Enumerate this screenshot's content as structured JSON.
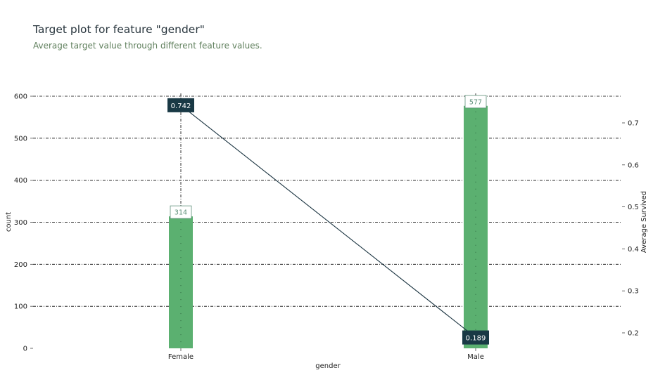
{
  "header": {
    "title": "Target plot for feature \"gender\"",
    "subtitle": "Average target value through different feature values."
  },
  "colors": {
    "bar": "#5bb070",
    "line": "#1a3340",
    "label_box": "#193945",
    "bar_label_text": "#5d8f78",
    "grid": "#000000",
    "title": "#29363e",
    "subtitle": "#5f7f5c"
  },
  "chart_data": {
    "type": "bar",
    "title": "Target plot for feature \"gender\"",
    "subtitle": "Average target value through different feature values.",
    "xlabel": "gender",
    "ylabel": "count",
    "y2label": "Average Survived",
    "categories": [
      "Female",
      "Male"
    ],
    "ylim": [
      0,
      600
    ],
    "y2lim": [
      0.15,
      0.78
    ],
    "yticks": [
      0,
      100,
      200,
      300,
      400,
      500,
      600
    ],
    "y2ticks": [
      0.2,
      0.3,
      0.4,
      0.5,
      0.6,
      0.7
    ],
    "ytick_labels": [
      "0",
      "100",
      "200",
      "300",
      "400",
      "500",
      "600"
    ],
    "y2tick_labels": [
      "0.2",
      "0.3",
      "0.4",
      "0.5",
      "0.6",
      "0.7"
    ],
    "grid": true,
    "series": [
      {
        "type": "bar",
        "axis": "left",
        "values": [
          314,
          577
        ],
        "labels": [
          "314",
          "577"
        ]
      },
      {
        "type": "line",
        "axis": "right",
        "values": [
          0.742,
          0.189
        ],
        "labels": [
          "0.742",
          "0.189"
        ]
      }
    ]
  }
}
